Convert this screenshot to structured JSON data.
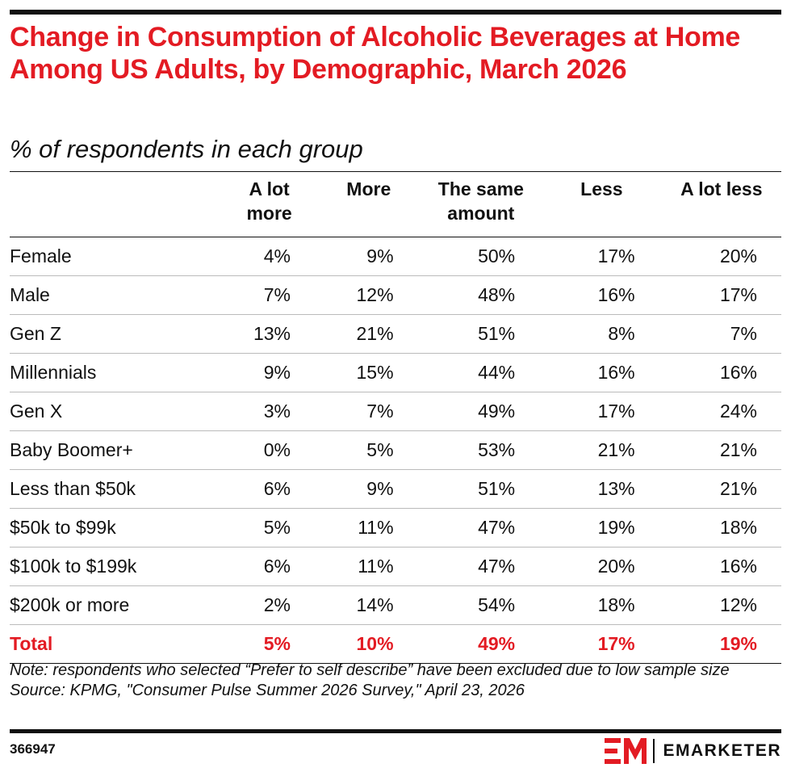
{
  "title": "Change in Consumption of Alcoholic Beverages at Home Among US Adults, by Demographic, March 2026",
  "subtitle": "% of respondents in each group",
  "columns": [
    "A lot more",
    "More",
    "The same amount",
    "Less",
    "A lot less"
  ],
  "rows": [
    {
      "label": "Female",
      "values": [
        "4%",
        "9%",
        "50%",
        "17%",
        "20%"
      ]
    },
    {
      "label": "Male",
      "values": [
        "7%",
        "12%",
        "48%",
        "16%",
        "17%"
      ]
    },
    {
      "label": "Gen Z",
      "values": [
        "13%",
        "21%",
        "51%",
        "8%",
        "7%"
      ]
    },
    {
      "label": "Millennials",
      "values": [
        "9%",
        "15%",
        "44%",
        "16%",
        "16%"
      ]
    },
    {
      "label": "Gen X",
      "values": [
        "3%",
        "7%",
        "49%",
        "17%",
        "24%"
      ]
    },
    {
      "label": "Baby Boomer+",
      "values": [
        "0%",
        "5%",
        "53%",
        "21%",
        "21%"
      ]
    },
    {
      "label": "Less than $50k",
      "values": [
        "6%",
        "9%",
        "51%",
        "13%",
        "21%"
      ]
    },
    {
      "label": "$50k to $99k",
      "values": [
        "5%",
        "11%",
        "47%",
        "19%",
        "18%"
      ]
    },
    {
      "label": "$100k to $199k",
      "values": [
        "6%",
        "11%",
        "47%",
        "20%",
        "16%"
      ]
    },
    {
      "label": "$200k or more",
      "values": [
        "2%",
        "14%",
        "54%",
        "18%",
        "12%"
      ]
    }
  ],
  "total": {
    "label": "Total",
    "values": [
      "5%",
      "10%",
      "49%",
      "17%",
      "19%"
    ]
  },
  "note": "Note: respondents who selected “Prefer to self describe” have been excluded due to low sample size",
  "source": "Source: KPMG, \"Consumer Pulse Summer 2026 Survey,\" April 23, 2026",
  "chart_id": "366947",
  "brand": "EMARKETER",
  "colors": {
    "accent": "#e31b23",
    "text": "#111111"
  },
  "chart_data": {
    "type": "table",
    "title": "Change in Consumption of Alcoholic Beverages at Home Among US Adults, by Demographic, March 2026",
    "subtitle": "% of respondents in each group",
    "columns": [
      "A lot more",
      "More",
      "The same amount",
      "Less",
      "A lot less"
    ],
    "categories": [
      "Female",
      "Male",
      "Gen Z",
      "Millennials",
      "Gen X",
      "Baby Boomer+",
      "Less than $50k",
      "$50k to $99k",
      "$100k to $199k",
      "$200k or more",
      "Total"
    ],
    "series": [
      {
        "name": "A lot more",
        "values": [
          4,
          7,
          13,
          9,
          3,
          0,
          6,
          5,
          6,
          2,
          5
        ]
      },
      {
        "name": "More",
        "values": [
          9,
          12,
          21,
          15,
          7,
          5,
          9,
          11,
          11,
          14,
          10
        ]
      },
      {
        "name": "The same amount",
        "values": [
          50,
          48,
          51,
          44,
          49,
          53,
          51,
          47,
          47,
          54,
          49
        ]
      },
      {
        "name": "Less",
        "values": [
          17,
          16,
          8,
          16,
          17,
          21,
          13,
          19,
          20,
          18,
          17
        ]
      },
      {
        "name": "A lot less",
        "values": [
          20,
          17,
          7,
          16,
          24,
          21,
          21,
          18,
          16,
          12,
          19
        ]
      }
    ]
  }
}
